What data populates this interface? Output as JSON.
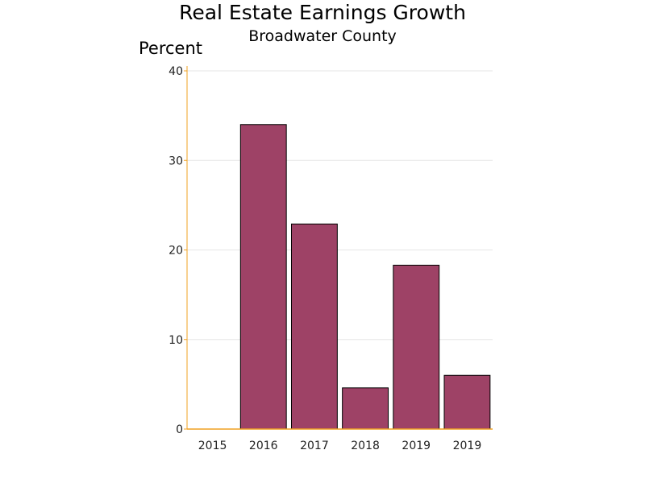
{
  "chart_data": {
    "type": "bar",
    "title": "Real Estate Earnings Growth",
    "subtitle": "Broadwater County",
    "ylabel": "Percent",
    "xlabel": "",
    "categories": [
      "2015",
      "2016",
      "2017",
      "2018",
      "2019",
      "2019"
    ],
    "values": [
      0,
      34.0,
      22.9,
      4.6,
      18.3,
      6.0
    ],
    "ylim": [
      0,
      40
    ],
    "yticks": [
      0,
      10,
      20,
      30,
      40
    ],
    "grid": true,
    "legend": "none",
    "colors": {
      "bar": "#9e4266",
      "axis": "#f0a020",
      "grid": "#e6e6e6"
    }
  }
}
